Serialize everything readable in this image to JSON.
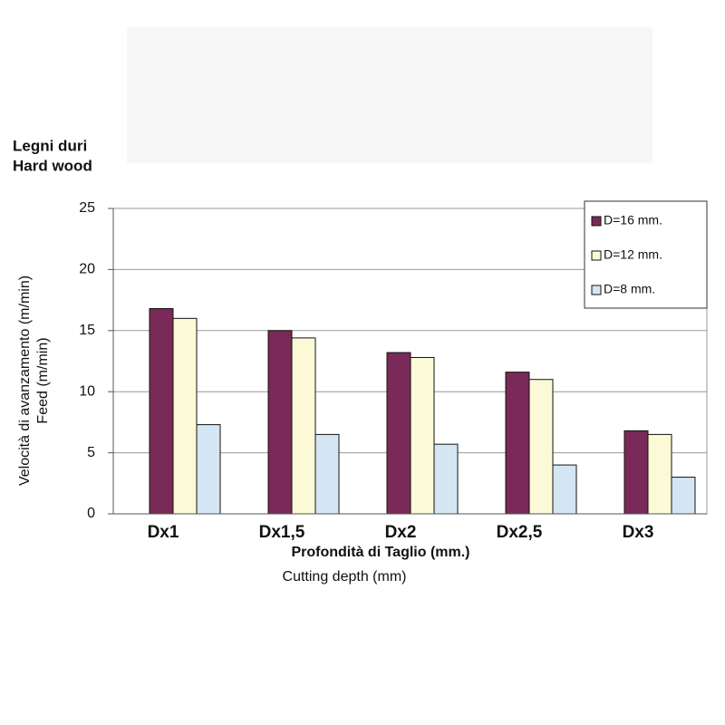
{
  "chart_data": {
    "type": "bar",
    "title": "Legni duri",
    "subtitle": "Hard wood",
    "ylabel": [
      "Velocità di avanzamento (m/min)",
      "Feed (m/min)"
    ],
    "xlabel": [
      "Profondità di Taglio (mm.)",
      "Cutting depth (mm)"
    ],
    "categories": [
      "Dx1",
      "Dx1,5",
      "Dx2",
      "Dx2,5",
      "Dx3"
    ],
    "series": [
      {
        "name": "D=16 mm.",
        "color": "#7a2a58",
        "values": [
          16.8,
          15.0,
          13.2,
          11.6,
          6.8
        ]
      },
      {
        "name": "D=12 mm.",
        "color": "#fcf9d6",
        "values": [
          16.0,
          14.4,
          12.8,
          11.0,
          6.5
        ]
      },
      {
        "name": "D=8 mm.",
        "color": "#d4e6f3",
        "values": [
          7.3,
          6.5,
          5.7,
          4.0,
          3.0
        ]
      }
    ],
    "ylim": [
      0,
      25
    ],
    "yticks": [
      0,
      5,
      10,
      15,
      20,
      25
    ],
    "grid": true,
    "legend": "top-right"
  }
}
